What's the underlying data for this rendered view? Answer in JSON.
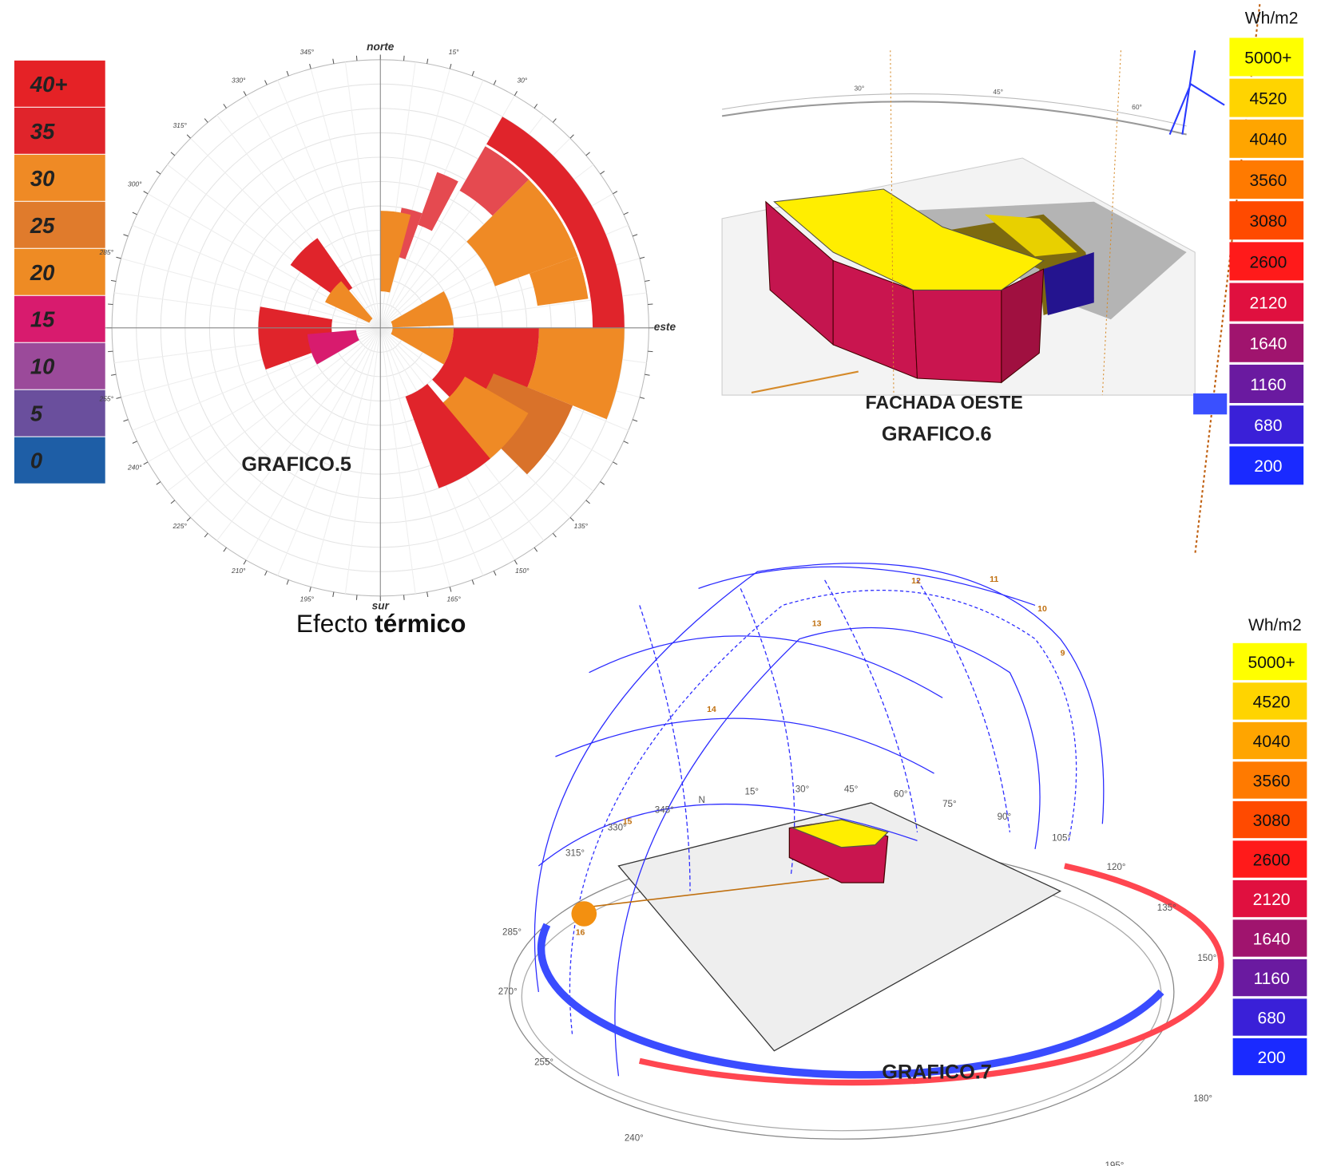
{
  "temperature_legend": {
    "items": [
      {
        "label": "40+",
        "color": "#e52226"
      },
      {
        "label": "35",
        "color": "#e0242b"
      },
      {
        "label": "30",
        "color": "#ef8a25"
      },
      {
        "label": "25",
        "color": "#e07b2c"
      },
      {
        "label": "20",
        "color": "#ee8b24"
      },
      {
        "label": "15",
        "color": "#d81b6e"
      },
      {
        "label": "10",
        "color": "#9b4a9a"
      },
      {
        "label": "5",
        "color": "#6a4f9d"
      },
      {
        "label": "0",
        "color": "#1e5ea6"
      }
    ]
  },
  "rose": {
    "north": "norte",
    "east": "este",
    "south": "sur",
    "caption": "GRAFICO.5",
    "effect_text": "Efecto",
    "effect_bold": "térmico",
    "angles": [
      {
        "value": 15,
        "label": "15°"
      },
      {
        "value": 30,
        "label": "30°"
      },
      {
        "value": 135,
        "label": "135°"
      },
      {
        "value": 150,
        "label": "150°"
      },
      {
        "value": 165,
        "label": "165°"
      },
      {
        "value": 195,
        "label": "195°"
      },
      {
        "value": 210,
        "label": "210°"
      },
      {
        "value": 225,
        "label": "225°"
      },
      {
        "value": 240,
        "label": "240°"
      },
      {
        "value": 255,
        "label": "255°"
      },
      {
        "value": 285,
        "label": "285°"
      },
      {
        "value": 300,
        "label": "300°"
      },
      {
        "value": 315,
        "label": "315°"
      },
      {
        "value": 330,
        "label": "330°"
      },
      {
        "value": 345,
        "label": "345°"
      }
    ],
    "rings": 10,
    "wedges": [
      {
        "from": 30,
        "to": 90,
        "inner": 8.7,
        "outer": 10,
        "color": "#e0242b"
      },
      {
        "from": 30,
        "to": 45,
        "inner": 6.5,
        "outer": 8.6,
        "color": "#e54a50"
      },
      {
        "from": 45,
        "to": 70,
        "inner": 5,
        "outer": 8.6,
        "color": "#ef8a25"
      },
      {
        "from": 70,
        "to": 82,
        "inner": 6.5,
        "outer": 8.6,
        "color": "#ef8a25"
      },
      {
        "from": 90,
        "to": 112,
        "inner": 6.5,
        "outer": 10,
        "color": "#ef8a25"
      },
      {
        "from": 90,
        "to": 135,
        "inner": 3,
        "outer": 6.5,
        "color": "#e0242b"
      },
      {
        "from": 112,
        "to": 135,
        "inner": 5,
        "outer": 8.5,
        "color": "#d9722a"
      },
      {
        "from": 120,
        "to": 150,
        "inner": 4,
        "outer": 7,
        "color": "#ef8a25"
      },
      {
        "from": 140,
        "to": 160,
        "inner": 3,
        "outer": 7,
        "color": "#e0242b"
      },
      {
        "from": 10,
        "to": 20,
        "inner": 3,
        "outer": 5,
        "color": "#e54a50"
      },
      {
        "from": 20,
        "to": 28,
        "inner": 4.5,
        "outer": 6.8,
        "color": "#e54a50"
      },
      {
        "from": 0,
        "to": 15,
        "inner": 1.5,
        "outer": 4.8,
        "color": "#ef8a25"
      },
      {
        "from": 305,
        "to": 325,
        "inner": 2,
        "outer": 4.5,
        "color": "#e0242b"
      },
      {
        "from": 295,
        "to": 320,
        "inner": 0.5,
        "outer": 2.5,
        "color": "#ef8a25"
      },
      {
        "from": 250,
        "to": 280,
        "inner": 2,
        "outer": 5,
        "color": "#e0242b"
      },
      {
        "from": 240,
        "to": 265,
        "inner": 1,
        "outer": 3,
        "color": "#d81b6e"
      },
      {
        "from": 60,
        "to": 88,
        "inner": 0.5,
        "outer": 3,
        "color": "#ef8a25"
      },
      {
        "from": 90,
        "to": 120,
        "inner": 0.5,
        "outer": 3,
        "color": "#ef8a25"
      }
    ]
  },
  "render_top": {
    "facade": "FACHADA OESTE",
    "caption": "GRAFICO.6",
    "unit": "Wh/m2",
    "legend": [
      {
        "label": "5000+",
        "color": "#ffff00"
      },
      {
        "label": "4520",
        "color": "#ffd400"
      },
      {
        "label": "4040",
        "color": "#ffa500"
      },
      {
        "label": "3560",
        "color": "#ff7a00"
      },
      {
        "label": "3080",
        "color": "#ff4a00"
      },
      {
        "label": "2600",
        "color": "#ff1a1a"
      },
      {
        "label": "2120",
        "color": "#e0103f"
      },
      {
        "label": "1640",
        "color": "#a0146e"
      },
      {
        "label": "1160",
        "color": "#6a1aa0"
      },
      {
        "label": "680",
        "color": "#3a20d8"
      },
      {
        "label": "200",
        "color": "#1a2aff"
      }
    ],
    "angles": [
      "30°",
      "45°",
      "60°"
    ]
  },
  "render_bottom": {
    "caption": "GRAFICO.7",
    "unit": "Wh/m2",
    "legend": [
      {
        "label": "5000+",
        "color": "#ffff00"
      },
      {
        "label": "4520",
        "color": "#ffd400"
      },
      {
        "label": "4040",
        "color": "#ffa500"
      },
      {
        "label": "3560",
        "color": "#ff7a00"
      },
      {
        "label": "3080",
        "color": "#ff4a00"
      },
      {
        "label": "2600",
        "color": "#ff1a1a"
      },
      {
        "label": "2120",
        "color": "#e0103f"
      },
      {
        "label": "1640",
        "color": "#a0146e"
      },
      {
        "label": "1160",
        "color": "#6a1aa0"
      },
      {
        "label": "680",
        "color": "#3a20d8"
      },
      {
        "label": "200",
        "color": "#1a2aff"
      }
    ],
    "angles": [
      "N",
      "15°",
      "30°",
      "45°",
      "60°",
      "75°",
      "90°",
      "105°",
      "120°",
      "135°",
      "150°",
      "180°",
      "195°",
      "240°",
      "255°",
      "270°",
      "285°",
      "315°",
      "330°",
      "345°"
    ],
    "hours": [
      "9",
      "10",
      "11",
      "12",
      "13",
      "14",
      "15",
      "16"
    ]
  }
}
